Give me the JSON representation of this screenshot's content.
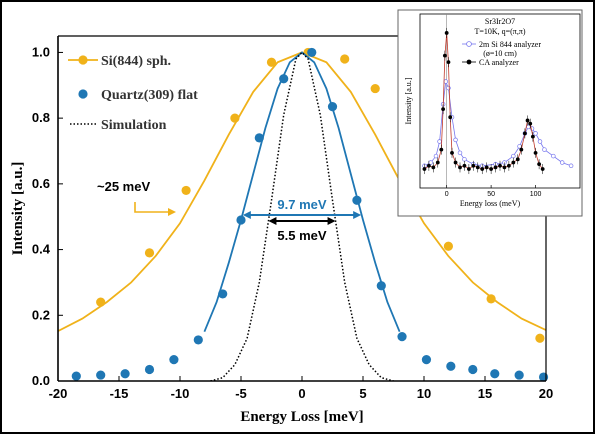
{
  "chart_data": [
    {
      "type": "scatter",
      "xlabel": "Energy Loss [meV]",
      "ylabel": "Intensity [a.u.]",
      "xlim": [
        -20,
        20
      ],
      "ylim": [
        0,
        1.05
      ],
      "xticks": [
        "-20",
        "-15",
        "-10",
        "-5",
        "0",
        "5",
        "10",
        "15",
        "20"
      ],
      "yticks": [
        "0.0",
        "0.2",
        "0.4",
        "0.6",
        "0.8",
        "1.0"
      ],
      "legend_position": "top-left",
      "series": [
        {
          "name": "Si(844) sph.",
          "color": "#f0b21a",
          "marker": "circle",
          "line": "solid",
          "points": [
            [
              -16.5,
              0.24
            ],
            [
              -12.5,
              0.39
            ],
            [
              -9.5,
              0.58
            ],
            [
              -5.5,
              0.8
            ],
            [
              -2.5,
              0.97
            ],
            [
              0.5,
              1.0
            ],
            [
              3.5,
              0.98
            ],
            [
              6.0,
              0.89
            ],
            [
              12.0,
              0.41
            ],
            [
              15.5,
              0.25
            ],
            [
              19.5,
              0.13
            ]
          ],
          "fit": [
            [
              -20,
              0.152
            ],
            [
              -18,
              0.19
            ],
            [
              -16,
              0.24
            ],
            [
              -14,
              0.3
            ],
            [
              -12,
              0.38
            ],
            [
              -10,
              0.48
            ],
            [
              -8,
              0.61
            ],
            [
              -6,
              0.75
            ],
            [
              -4,
              0.88
            ],
            [
              -2,
              0.97
            ],
            [
              0,
              1.0
            ],
            [
              2,
              0.97
            ],
            [
              4,
              0.88
            ],
            [
              6,
              0.75
            ],
            [
              8,
              0.61
            ],
            [
              10,
              0.48
            ],
            [
              12,
              0.38
            ],
            [
              14,
              0.3
            ],
            [
              16,
              0.24
            ],
            [
              18,
              0.19
            ],
            [
              20,
              0.155
            ]
          ]
        },
        {
          "name": "Quartz(309) flat",
          "color": "#1f77b4",
          "marker": "circle",
          "line": "solid",
          "points": [
            [
              -18.5,
              0.015
            ],
            [
              -16.5,
              0.018
            ],
            [
              -14.5,
              0.022
            ],
            [
              -12.5,
              0.035
            ],
            [
              -10.5,
              0.065
            ],
            [
              -8.5,
              0.125
            ],
            [
              -6.5,
              0.265
            ],
            [
              -5.0,
              0.49
            ],
            [
              -3.5,
              0.74
            ],
            [
              -1.5,
              0.92
            ],
            [
              0.8,
              1.0
            ],
            [
              2.5,
              0.835
            ],
            [
              4.5,
              0.55
            ],
            [
              6.5,
              0.29
            ],
            [
              8.2,
              0.135
            ],
            [
              10.2,
              0.065
            ],
            [
              12.2,
              0.045
            ],
            [
              14.0,
              0.035
            ],
            [
              15.8,
              0.022
            ],
            [
              17.8,
              0.018
            ],
            [
              19.8,
              0.012
            ]
          ],
          "fit": [
            [
              -8,
              0.15
            ],
            [
              -7,
              0.24
            ],
            [
              -6,
              0.36
            ],
            [
              -5,
              0.49
            ],
            [
              -4,
              0.63
            ],
            [
              -3,
              0.77
            ],
            [
              -2,
              0.89
            ],
            [
              -1,
              0.97
            ],
            [
              0,
              1.0
            ],
            [
              1,
              0.97
            ],
            [
              2,
              0.89
            ],
            [
              3,
              0.77
            ],
            [
              4,
              0.63
            ],
            [
              5,
              0.49
            ],
            [
              6,
              0.36
            ],
            [
              7,
              0.24
            ],
            [
              8,
              0.15
            ]
          ]
        },
        {
          "name": "Simulation",
          "color": "#000000",
          "marker": "none",
          "line": "dotted",
          "fit": [
            [
              -7.5,
              0.0
            ],
            [
              -6.5,
              0.01
            ],
            [
              -5.5,
              0.05
            ],
            [
              -4.5,
              0.13
            ],
            [
              -3.5,
              0.3
            ],
            [
              -2.5,
              0.55
            ],
            [
              -1.5,
              0.81
            ],
            [
              -0.5,
              0.98
            ],
            [
              0,
              1.0
            ],
            [
              0.5,
              0.98
            ],
            [
              1.5,
              0.81
            ],
            [
              2.5,
              0.55
            ],
            [
              3.5,
              0.3
            ],
            [
              4.5,
              0.13
            ],
            [
              5.5,
              0.05
            ],
            [
              6.5,
              0.01
            ],
            [
              7.5,
              0.0
            ]
          ]
        }
      ],
      "annotations": [
        {
          "text": "~25 meV",
          "color": "#000000",
          "arrow_color": "#f0b21a",
          "y": 0.5
        },
        {
          "text": "9.7 meV",
          "color": "#1f77b4",
          "from": -4.85,
          "to": 4.85,
          "y": 0.5
        },
        {
          "text": "5.5 meV",
          "color": "#000000",
          "from": -2.75,
          "to": 2.75,
          "y": 0.5
        }
      ]
    },
    {
      "type": "scatter",
      "inset": true,
      "title_lines": [
        "Sr3Ir2O7",
        "T=10K, q=(π,π)"
      ],
      "xlabel": "Energy loss (meV)",
      "ylabel": "Intensity [a.u.]",
      "xlim": [
        -30,
        150
      ],
      "xticks": [
        "0",
        "50",
        "100"
      ],
      "legend": [
        {
          "name": "2m Si 844 analyzer",
          "sub": "(ø=10 cm)",
          "color": "#7777ee",
          "marker": "open-circle"
        },
        {
          "name": "CA analyzer",
          "color": "#000000",
          "marker": "filled-circle"
        }
      ],
      "series": [
        {
          "name": "2m Si 844 analyzer",
          "color": "#7777ee",
          "points": [
            [
              -25,
              0.1
            ],
            [
              -18,
              0.12
            ],
            [
              -12,
              0.16
            ],
            [
              -8,
              0.25
            ],
            [
              -4,
              0.48
            ],
            [
              -1,
              0.62
            ],
            [
              2,
              0.58
            ],
            [
              6,
              0.4
            ],
            [
              10,
              0.26
            ],
            [
              15,
              0.18
            ],
            [
              20,
              0.14
            ],
            [
              30,
              0.11
            ],
            [
              40,
              0.1
            ],
            [
              55,
              0.11
            ],
            [
              65,
              0.12
            ],
            [
              75,
              0.16
            ],
            [
              82,
              0.22
            ],
            [
              88,
              0.3
            ],
            [
              92,
              0.34
            ],
            [
              96,
              0.33
            ],
            [
              100,
              0.3
            ],
            [
              105,
              0.25
            ],
            [
              110,
              0.2
            ],
            [
              120,
              0.16
            ],
            [
              130,
              0.12
            ],
            [
              140,
              0.1
            ]
          ]
        },
        {
          "name": "CA analyzer",
          "color": "#000000",
          "points": [
            [
              -25,
              0.08
            ],
            [
              -20,
              0.1
            ],
            [
              -15,
              0.09
            ],
            [
              -10,
              0.12
            ],
            [
              -6,
              0.2
            ],
            [
              -4,
              0.45
            ],
            [
              -2,
              0.78
            ],
            [
              0,
              0.92
            ],
            [
              2,
              0.74
            ],
            [
              4,
              0.4
            ],
            [
              6,
              0.18
            ],
            [
              10,
              0.12
            ],
            [
              15,
              0.09
            ],
            [
              20,
              0.1
            ],
            [
              25,
              0.08
            ],
            [
              30,
              0.1
            ],
            [
              35,
              0.09
            ],
            [
              40,
              0.08
            ],
            [
              45,
              0.09
            ],
            [
              50,
              0.08
            ],
            [
              55,
              0.09
            ],
            [
              60,
              0.1
            ],
            [
              65,
              0.09
            ],
            [
              70,
              0.1
            ],
            [
              75,
              0.12
            ],
            [
              80,
              0.14
            ],
            [
              84,
              0.2
            ],
            [
              88,
              0.3
            ],
            [
              91,
              0.38
            ],
            [
              94,
              0.36
            ],
            [
              97,
              0.28
            ],
            [
              100,
              0.18
            ],
            [
              104,
              0.11
            ],
            [
              108,
              0.08
            ]
          ]
        }
      ]
    }
  ]
}
